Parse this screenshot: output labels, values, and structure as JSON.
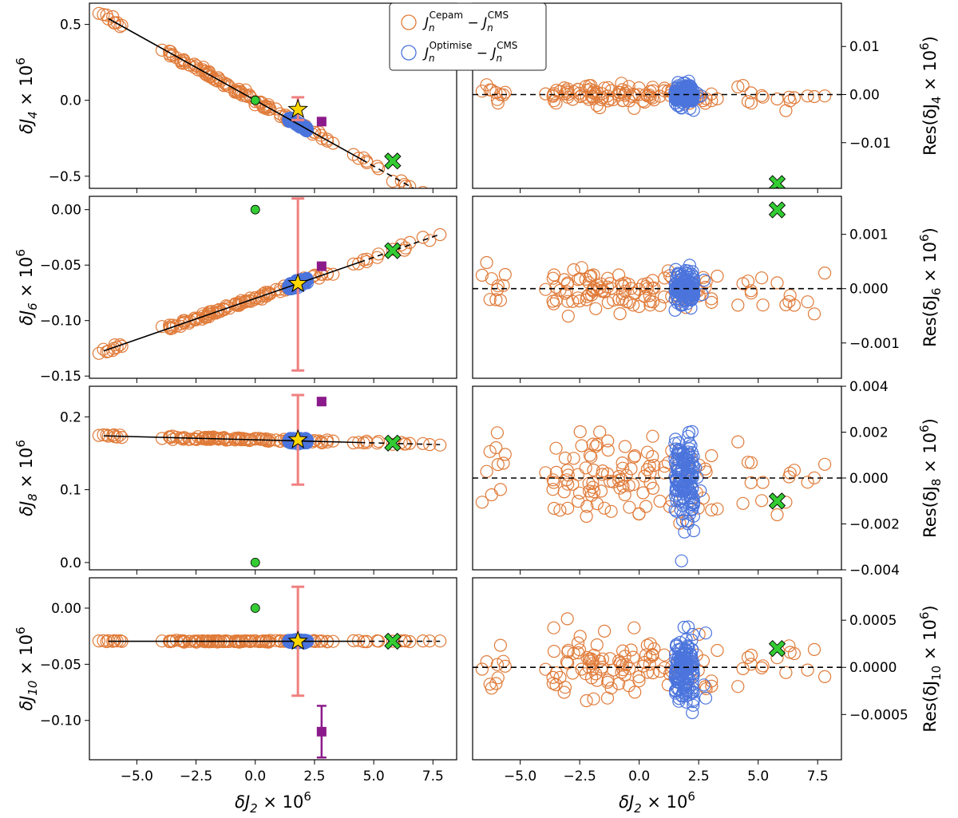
{
  "legend": {
    "placement": "top-center",
    "entries": [
      {
        "label": "J_n^Cepam − J_n^CMS",
        "base": "J",
        "sub": "n",
        "sup": "Cepam",
        "rest_base": "J",
        "rest_sub": "n",
        "rest_sup": "CMS",
        "color": "#e07b39",
        "marker": "open-circle"
      },
      {
        "label": "J_n^Optimise − J_n^CMS",
        "base": "J",
        "sub": "n",
        "sup": "Optimise",
        "rest_base": "J",
        "rest_sub": "n",
        "rest_sup": "CMS",
        "color": "#4b74dc",
        "marker": "open-circle"
      }
    ]
  },
  "colors": {
    "cepam": "#e07b39",
    "optimise": "#4b74dc",
    "errorbar": "#f08080",
    "star": "#ffd700",
    "cross": "#33cc33",
    "green_dot": "#33cc33",
    "square": "#8b1a8b"
  },
  "shared_x": {
    "label_prefix": "δJ",
    "label_sub": "2",
    "label_suffix": " × 10",
    "label_exp": "6",
    "xlim": [
      -7.0,
      8.5
    ],
    "ticks": [
      -5.0,
      -2.5,
      0.0,
      2.5,
      5.0,
      7.5
    ],
    "tick_labels": [
      "−5.0",
      "−2.5",
      "0.0",
      "2.5",
      "5.0",
      "7.5"
    ]
  },
  "chart_data": [
    {
      "type": "scatter",
      "panel": "left",
      "row": 1,
      "ylabel": {
        "prefix": "δJ",
        "sub": "4",
        "suffix": " × 10",
        "exp": "6"
      },
      "ylim": [
        -0.58,
        0.64
      ],
      "yticks": [
        0.5,
        0.0,
        -0.5
      ],
      "ytick_labels": [
        "0.5",
        "0.0",
        "−0.5"
      ],
      "fit": {
        "slope": -0.0868,
        "intercept": 0.0,
        "solid_from": -6.2,
        "solid_to": 4.5,
        "dashed_to": 7.7
      },
      "star": {
        "x": 1.8,
        "y": -0.06
      },
      "errorbar": {
        "x": 1.8,
        "low": -0.13,
        "high": 0.02
      },
      "cross": {
        "x": 5.8,
        "y": -0.4
      },
      "green_dot": {
        "x": 0.0,
        "y": 0.0
      },
      "square": {
        "x": 2.8,
        "y": -0.14,
        "err": 0.0
      },
      "optimise_range": [
        1.4,
        2.2
      ],
      "cepam_seed": 11
    },
    {
      "type": "scatter",
      "panel": "right",
      "row": 1,
      "ylabel": {
        "prefix": "Res(δJ",
        "sub": "4",
        "suffix": " × 10",
        "exp": "6",
        "close": ")"
      },
      "ylim": [
        -0.0195,
        0.019
      ],
      "yticks": [
        0.01,
        0.0,
        -0.01
      ],
      "ytick_labels": [
        "0.01",
        "0.00",
        "−0.01"
      ],
      "zero_line": 0.0,
      "cross": {
        "x": 5.8,
        "y": -0.0185
      },
      "cepam_spread": 0.0012,
      "optimise_spread": 0.0015,
      "cepam_seed": 21
    },
    {
      "type": "scatter",
      "panel": "left",
      "row": 2,
      "ylabel": {
        "prefix": "δJ",
        "sub": "6",
        "suffix": " × 10",
        "exp": "6"
      },
      "ylim": [
        -0.152,
        0.012
      ],
      "yticks": [
        0.0,
        -0.05,
        -0.1,
        -0.15
      ],
      "ytick_labels": [
        "0.00",
        "−0.05",
        "−0.10",
        "−0.15"
      ],
      "fit": {
        "slope": 0.0074,
        "intercept": -0.08,
        "solid_from": -6.4,
        "solid_to": 4.4,
        "dashed_to": 7.8
      },
      "star": {
        "x": 1.8,
        "y": -0.0667
      },
      "errorbar": {
        "x": 1.8,
        "low": -0.145,
        "high": 0.01
      },
      "cross": {
        "x": 5.8,
        "y": -0.037
      },
      "green_dot": {
        "x": 0.0,
        "y": 0.0
      },
      "square": {
        "x": 2.8,
        "y": -0.051,
        "err": 0.0
      },
      "optimise_range": [
        1.4,
        2.2
      ],
      "cepam_seed": 31
    },
    {
      "type": "scatter",
      "panel": "right",
      "row": 2,
      "ylabel": {
        "prefix": "Res(δJ",
        "sub": "6",
        "suffix": " × 10",
        "exp": "6",
        "close": ")"
      },
      "ylim": [
        -0.00165,
        0.0017
      ],
      "yticks": [
        0.001,
        0.0,
        -0.001
      ],
      "ytick_labels": [
        "0.001",
        "0.000",
        "−0.001"
      ],
      "zero_line": 0.0,
      "cross": {
        "x": 5.8,
        "y": 0.00145
      },
      "cepam_spread": 0.00022,
      "optimise_spread": 0.00022,
      "cepam_seed": 41
    },
    {
      "type": "scatter",
      "panel": "left",
      "row": 3,
      "ylabel": {
        "prefix": "δJ",
        "sub": "8",
        "suffix": " × 10",
        "exp": "6"
      },
      "ylim": [
        -0.01,
        0.242
      ],
      "yticks": [
        0.2,
        0.1,
        0.0
      ],
      "ytick_labels": [
        "0.2",
        "0.1",
        "0.0"
      ],
      "fit": {
        "slope": -0.00085,
        "intercept": 0.1685,
        "solid_from": -6.4,
        "solid_to": 4.4,
        "dashed_to": 7.8
      },
      "star": {
        "x": 1.8,
        "y": 0.1685
      },
      "errorbar": {
        "x": 1.8,
        "low": 0.107,
        "high": 0.23
      },
      "cross": {
        "x": 5.8,
        "y": 0.164
      },
      "green_dot": {
        "x": 0.0,
        "y": 0.0
      },
      "square": {
        "x": 2.8,
        "y": 0.221,
        "err": 0.004
      },
      "optimise_range": [
        1.4,
        2.2
      ],
      "cepam_seed": 51
    },
    {
      "type": "scatter",
      "panel": "right",
      "row": 3,
      "ylabel": {
        "prefix": "Res(δJ",
        "sub": "8",
        "suffix": " × 10",
        "exp": "6",
        "close": ")"
      },
      "ylim": [
        -0.004,
        0.004
      ],
      "yticks": [
        0.004,
        0.002,
        0.0,
        -0.002,
        -0.004
      ],
      "ytick_labels": [
        "0.004",
        "0.002",
        "0.000",
        "−0.002",
        "−0.004"
      ],
      "zero_line": 0.0,
      "cross": {
        "x": 5.8,
        "y": -0.001
      },
      "cepam_spread": 0.0012,
      "optimise_spread": 0.0012,
      "cepam_seed": 61
    },
    {
      "type": "scatter",
      "panel": "left",
      "row": 4,
      "ylabel": {
        "prefix": "δJ",
        "sub": "10",
        "suffix": " × 10",
        "exp": "6"
      },
      "ylim": [
        -0.135,
        0.027
      ],
      "yticks": [
        0.0,
        -0.05,
        -0.1
      ],
      "ytick_labels": [
        "0.00",
        "−0.05",
        "−0.10"
      ],
      "fit": {
        "slope": 0.0,
        "intercept": -0.0295,
        "solid_from": -6.2,
        "solid_to": 4.4,
        "dashed_to": 7.8
      },
      "star": {
        "x": 1.8,
        "y": -0.0295
      },
      "errorbar": {
        "x": 1.8,
        "low": -0.078,
        "high": 0.019
      },
      "cross": {
        "x": 5.8,
        "y": -0.0295
      },
      "green_dot": {
        "x": 0.0,
        "y": 0.0
      },
      "square": {
        "x": 2.8,
        "y": -0.11,
        "err": 0.023
      },
      "optimise_range": [
        1.4,
        2.2
      ],
      "cepam_seed": 71
    },
    {
      "type": "scatter",
      "panel": "right",
      "row": 4,
      "ylabel": {
        "prefix": "Res(δJ",
        "sub": "10",
        "suffix": " × 10",
        "exp": "6",
        "close": ")"
      },
      "ylim": [
        -0.00098,
        0.00095
      ],
      "yticks": [
        0.0005,
        0.0,
        -0.0005
      ],
      "ytick_labels": [
        "0.0005",
        "0.0000",
        "−0.0005"
      ],
      "zero_line": 0.0,
      "cross": {
        "x": 5.8,
        "y": 0.0002
      },
      "cepam_spread": 0.00018,
      "optimise_spread": 0.00026,
      "cepam_seed": 81
    }
  ]
}
